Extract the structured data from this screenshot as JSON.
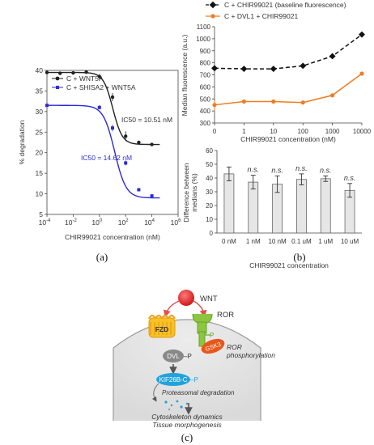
{
  "panel_labels": {
    "a": "(a)",
    "b": "(b)",
    "c": "(c)"
  },
  "chart_data": [
    {
      "type": "scatter",
      "panel": "a",
      "xscale": "log",
      "xlim": [
        0.0001,
        1000000
      ],
      "ylim": [
        5,
        40
      ],
      "xlabel": "CHIR99021 concentration (nM)",
      "ylabel": "% degradation",
      "xticks": [
        "10^-4",
        "10^-2",
        "10^0",
        "10^2",
        "10^4",
        "10^6"
      ],
      "yticks": [
        5,
        10,
        15,
        20,
        25,
        30,
        35,
        40
      ],
      "legend_placement": "top-left",
      "series": [
        {
          "name": "C + WNT5A",
          "color": "#222222",
          "x": [
            0.0001,
            0.001,
            0.01,
            0.1,
            1,
            10,
            100,
            1000,
            10000
          ],
          "y": [
            39.5,
            39.3,
            39.4,
            39.6,
            38.5,
            33.5,
            24,
            22.5,
            22
          ],
          "err": [
            0.3,
            0.3,
            0.3,
            0.3,
            0.6,
            1.0,
            1.2,
            0.4,
            0.3
          ],
          "fit": {
            "top": 39.5,
            "bottom": 22,
            "ic50": 10.51,
            "hill": 1.2
          },
          "annotation": "IC50 = 10.51 nM"
        },
        {
          "name": "C + SHISA2 + WNT5A",
          "color": "#2b2bd6",
          "x": [
            0.0001,
            1,
            10,
            100,
            1000,
            10000
          ],
          "y": [
            31.5,
            31,
            26,
            17.5,
            11,
            9.5
          ],
          "err": [
            0.4,
            0.5,
            0.8,
            0.6,
            0.4,
            0.3
          ],
          "fit": {
            "top": 31.5,
            "bottom": 9,
            "ic50": 14.62,
            "hill": 1.0
          },
          "annotation": "IC50 = 14.62 nM"
        }
      ]
    },
    {
      "type": "line",
      "panel": "b-top",
      "categories": [
        "0",
        "1",
        "10",
        "100",
        "1000",
        "10000"
      ],
      "ylim": [
        300,
        1100
      ],
      "yticks": [
        300,
        400,
        500,
        600,
        700,
        800,
        900,
        1000,
        1100
      ],
      "xlabel": "CHIR99021 concentration (nM)",
      "ylabel": "Median fluorescence (a.u.)",
      "legend_placement": "top",
      "series": [
        {
          "name": "C + CHIR99021 (baseline fluorescence)",
          "color": "#111111",
          "values": [
            755,
            750,
            750,
            775,
            855,
            1035
          ],
          "first_point_err": [
            730,
            775
          ]
        },
        {
          "name": "C + DVL1 + CHIR99021",
          "color": "#ee7d22",
          "values": [
            450,
            478,
            478,
            470,
            530,
            710
          ],
          "first_point_err": [
            400,
            485
          ]
        }
      ]
    },
    {
      "type": "bar",
      "panel": "b-bottom",
      "categories": [
        "0 nM",
        "1 nM",
        "10 nM",
        "0.1 uM",
        "1 uM",
        "10 uM"
      ],
      "values": [
        43,
        37,
        35.5,
        39,
        39.5,
        31
      ],
      "err": [
        5,
        5,
        6,
        4,
        2,
        5
      ],
      "significance": [
        "",
        "n.s.",
        "n.s.",
        "n.s.",
        "n.s.",
        "n.s."
      ],
      "ylim": [
        0,
        60
      ],
      "yticks": [
        0,
        10,
        20,
        30,
        40,
        50,
        60
      ],
      "xlabel": "CHIR99021 concentration",
      "ylabel_lines": [
        "Difference between",
        "medians (%)"
      ]
    }
  ],
  "diagram": {
    "wnt": "WNT",
    "ror": "ROR",
    "fzd": "FZD",
    "gsk3": "GSK3",
    "p": "P",
    "ror_phos_lines": [
      "ROR",
      "phosphorylation"
    ],
    "dvl": "DVL",
    "dvl_p": "–P",
    "kif": "KIF26B-C",
    "kif_p": "–P",
    "proteasomal": "Proteasomal degradation",
    "outcome_lines": [
      "Cytoskeleton dynamics",
      "Tissue morphogenesis"
    ]
  }
}
